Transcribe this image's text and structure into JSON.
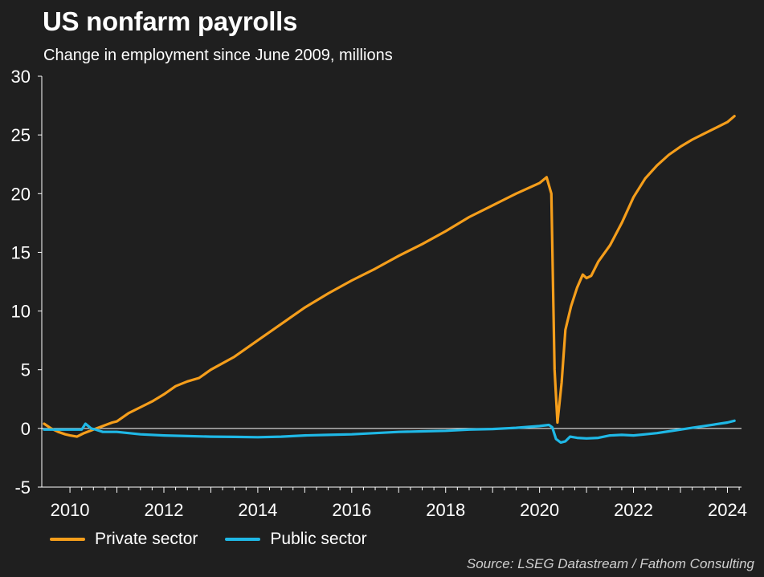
{
  "colors": {
    "private": "#f59e1b",
    "public": "#1fb8e6",
    "background": "#1f1f1f",
    "zero_line": "#ffffff"
  },
  "chart_data": {
    "type": "line",
    "title": "US nonfarm payrolls",
    "subtitle": "Change in employment since June 2009, millions",
    "source": "Source: LSEG Datastream / Fathom Consulting",
    "xlim": [
      2009.4,
      2024.3
    ],
    "ylim": [
      -5,
      30
    ],
    "x_ticks": [
      2010,
      2012,
      2014,
      2016,
      2018,
      2020,
      2022,
      2024
    ],
    "y_ticks": [
      -5,
      0,
      5,
      10,
      15,
      20,
      25,
      30
    ],
    "x_minor_per_year": 4,
    "grid": false,
    "legend": "bottom-left",
    "series": [
      {
        "name": "Private sector",
        "color": "#f59e1b",
        "points": [
          [
            2009.45,
            0.4
          ],
          [
            2009.6,
            0.0
          ],
          [
            2009.75,
            -0.3
          ],
          [
            2009.9,
            -0.5
          ],
          [
            2010.0,
            -0.6
          ],
          [
            2010.15,
            -0.7
          ],
          [
            2010.3,
            -0.4
          ],
          [
            2010.5,
            -0.1
          ],
          [
            2010.7,
            0.2
          ],
          [
            2010.9,
            0.5
          ],
          [
            2011.0,
            0.6
          ],
          [
            2011.25,
            1.3
          ],
          [
            2011.5,
            1.8
          ],
          [
            2011.75,
            2.3
          ],
          [
            2012.0,
            2.9
          ],
          [
            2012.25,
            3.6
          ],
          [
            2012.5,
            4.0
          ],
          [
            2012.75,
            4.3
          ],
          [
            2013.0,
            5.0
          ],
          [
            2013.5,
            6.1
          ],
          [
            2014.0,
            7.5
          ],
          [
            2014.5,
            8.9
          ],
          [
            2015.0,
            10.3
          ],
          [
            2015.5,
            11.5
          ],
          [
            2016.0,
            12.6
          ],
          [
            2016.5,
            13.6
          ],
          [
            2017.0,
            14.7
          ],
          [
            2017.5,
            15.7
          ],
          [
            2018.0,
            16.8
          ],
          [
            2018.5,
            18.0
          ],
          [
            2019.0,
            19.0
          ],
          [
            2019.5,
            20.0
          ],
          [
            2020.0,
            20.9
          ],
          [
            2020.15,
            21.4
          ],
          [
            2020.25,
            20.0
          ],
          [
            2020.32,
            5.0
          ],
          [
            2020.38,
            0.5
          ],
          [
            2020.47,
            3.9
          ],
          [
            2020.55,
            8.4
          ],
          [
            2020.67,
            10.4
          ],
          [
            2020.8,
            12.0
          ],
          [
            2020.92,
            13.1
          ],
          [
            2021.0,
            12.8
          ],
          [
            2021.1,
            13.0
          ],
          [
            2021.25,
            14.2
          ],
          [
            2021.5,
            15.6
          ],
          [
            2021.75,
            17.5
          ],
          [
            2022.0,
            19.7
          ],
          [
            2022.25,
            21.3
          ],
          [
            2022.5,
            22.4
          ],
          [
            2022.75,
            23.3
          ],
          [
            2023.0,
            24.0
          ],
          [
            2023.25,
            24.6
          ],
          [
            2023.5,
            25.1
          ],
          [
            2023.75,
            25.6
          ],
          [
            2024.0,
            26.1
          ],
          [
            2024.15,
            26.6
          ]
        ]
      },
      {
        "name": "Public sector",
        "color": "#1fb8e6",
        "points": [
          [
            2009.45,
            -0.1
          ],
          [
            2009.7,
            -0.1
          ],
          [
            2009.9,
            -0.1
          ],
          [
            2010.1,
            -0.1
          ],
          [
            2010.25,
            -0.1
          ],
          [
            2010.33,
            0.4
          ],
          [
            2010.45,
            0.0
          ],
          [
            2010.55,
            -0.1
          ],
          [
            2010.7,
            -0.3
          ],
          [
            2011.0,
            -0.3
          ],
          [
            2011.5,
            -0.5
          ],
          [
            2012.0,
            -0.6
          ],
          [
            2012.5,
            -0.65
          ],
          [
            2013.0,
            -0.7
          ],
          [
            2013.5,
            -0.72
          ],
          [
            2014.0,
            -0.75
          ],
          [
            2014.5,
            -0.7
          ],
          [
            2015.0,
            -0.6
          ],
          [
            2015.5,
            -0.55
          ],
          [
            2016.0,
            -0.5
          ],
          [
            2016.5,
            -0.4
          ],
          [
            2017.0,
            -0.3
          ],
          [
            2017.5,
            -0.25
          ],
          [
            2018.0,
            -0.2
          ],
          [
            2018.5,
            -0.1
          ],
          [
            2019.0,
            -0.05
          ],
          [
            2019.5,
            0.05
          ],
          [
            2020.0,
            0.2
          ],
          [
            2020.2,
            0.3
          ],
          [
            2020.27,
            0.1
          ],
          [
            2020.35,
            -0.9
          ],
          [
            2020.45,
            -1.2
          ],
          [
            2020.55,
            -1.1
          ],
          [
            2020.65,
            -0.7
          ],
          [
            2020.8,
            -0.8
          ],
          [
            2021.0,
            -0.85
          ],
          [
            2021.25,
            -0.8
          ],
          [
            2021.5,
            -0.6
          ],
          [
            2021.75,
            -0.55
          ],
          [
            2022.0,
            -0.6
          ],
          [
            2022.25,
            -0.5
          ],
          [
            2022.5,
            -0.4
          ],
          [
            2022.75,
            -0.25
          ],
          [
            2023.0,
            -0.1
          ],
          [
            2023.25,
            0.05
          ],
          [
            2023.5,
            0.2
          ],
          [
            2023.75,
            0.35
          ],
          [
            2024.0,
            0.5
          ],
          [
            2024.15,
            0.65
          ]
        ]
      }
    ]
  }
}
